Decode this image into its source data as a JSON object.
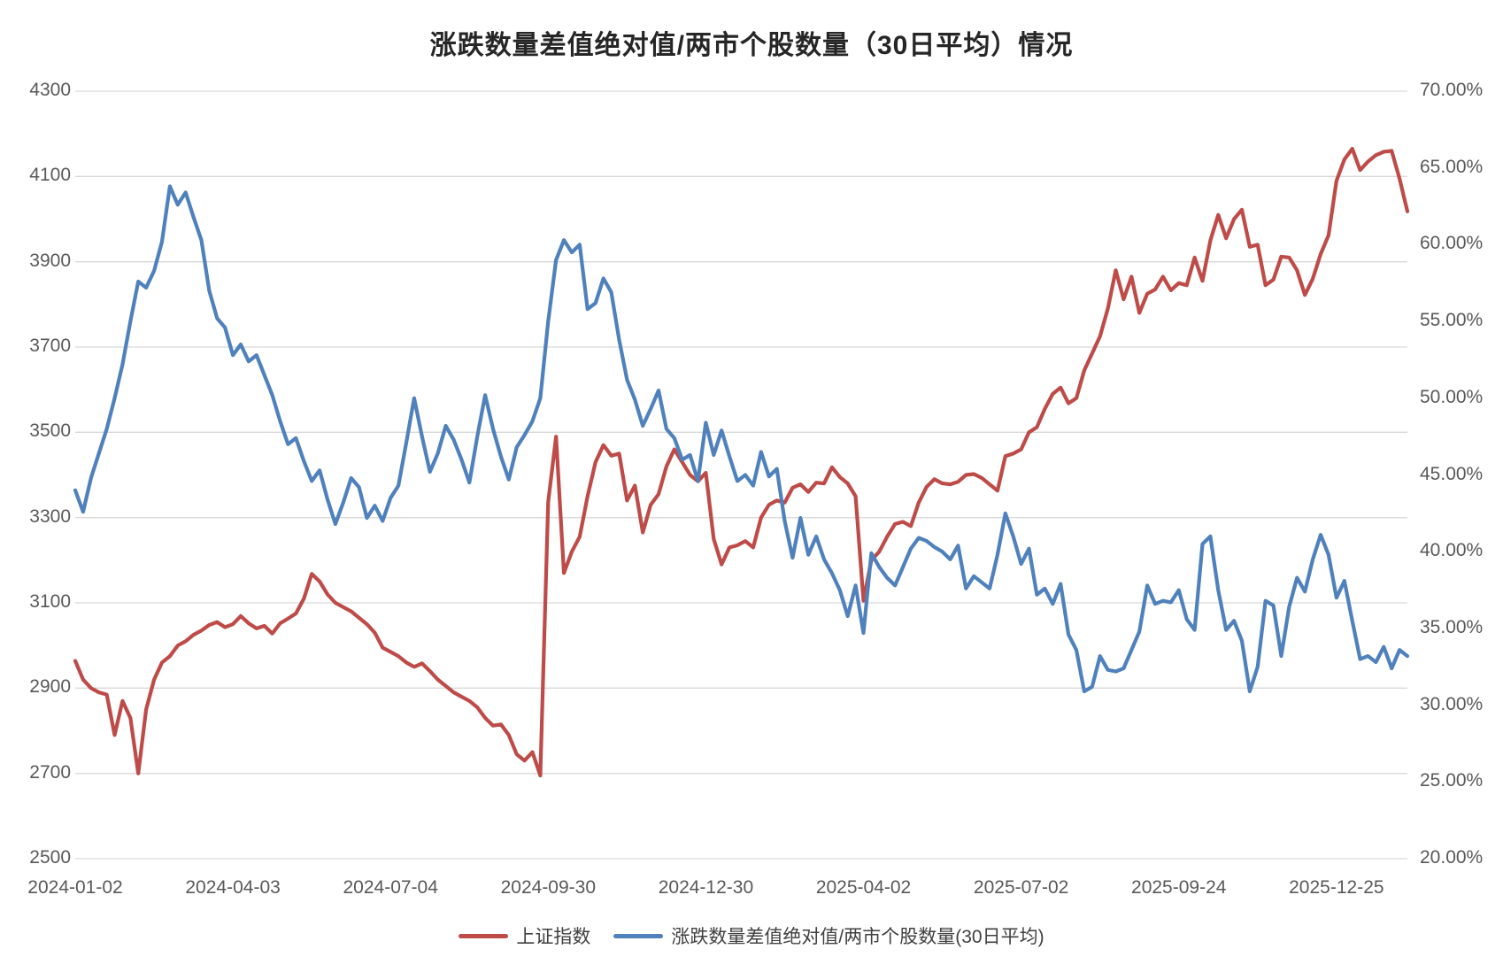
{
  "page": {
    "background": "#FFFFFF"
  },
  "chart_data": {
    "type": "line",
    "title": "涨跌数量差值绝对值/两市个股数量（30日平均）情况",
    "title_color": "#262626",
    "grid_color": "#D9D9D9",
    "axis_text_color": "#595959",
    "legend_position": "bottom",
    "x_tick_labels": [
      "2024-01-02",
      "2024-04-03",
      "2024-07-04",
      "2024-09-30",
      "2024-12-30",
      "2025-04-02",
      "2025-07-02",
      "2025-09-24",
      "2025-12-25"
    ],
    "x_points_per_tick": 20,
    "left_axis": {
      "min": 2500,
      "max": 4300,
      "tick_labels": [
        "4300",
        "4100",
        "3900",
        "3700",
        "3500",
        "3300",
        "3100",
        "2900",
        "2700",
        "2500"
      ]
    },
    "right_axis": {
      "min": 20,
      "max": 70,
      "tick_labels": [
        "70.00%",
        "65.00%",
        "60.00%",
        "55.00%",
        "50.00%",
        "45.00%",
        "40.00%",
        "35.00%",
        "30.00%",
        "25.00%",
        "20.00%"
      ]
    },
    "series": [
      {
        "name": "上证指数",
        "axis": "left",
        "color": "#BE4B48",
        "values": [
          2964,
          2920,
          2900,
          2890,
          2885,
          2790,
          2870,
          2830,
          2700,
          2850,
          2920,
          2960,
          2975,
          3000,
          3010,
          3025,
          3035,
          3048,
          3055,
          3043,
          3050,
          3069,
          3052,
          3040,
          3046,
          3028,
          3052,
          3063,
          3075,
          3110,
          3168,
          3150,
          3120,
          3100,
          3090,
          3080,
          3065,
          3050,
          3030,
          2995,
          2985,
          2975,
          2960,
          2950,
          2958,
          2940,
          2920,
          2905,
          2890,
          2880,
          2870,
          2855,
          2830,
          2812,
          2815,
          2790,
          2745,
          2730,
          2750,
          2695,
          3336,
          3490,
          3170,
          3220,
          3255,
          3350,
          3430,
          3470,
          3445,
          3450,
          3340,
          3375,
          3265,
          3330,
          3355,
          3420,
          3460,
          3430,
          3400,
          3385,
          3405,
          3250,
          3190,
          3230,
          3235,
          3245,
          3230,
          3300,
          3330,
          3340,
          3335,
          3370,
          3378,
          3360,
          3382,
          3380,
          3418,
          3395,
          3380,
          3350,
          3105,
          3200,
          3220,
          3255,
          3285,
          3290,
          3280,
          3335,
          3372,
          3390,
          3380,
          3378,
          3384,
          3400,
          3402,
          3393,
          3378,
          3363,
          3444,
          3450,
          3460,
          3500,
          3512,
          3555,
          3590,
          3605,
          3568,
          3580,
          3645,
          3685,
          3725,
          3790,
          3880,
          3812,
          3865,
          3780,
          3825,
          3835,
          3865,
          3833,
          3850,
          3845,
          3910,
          3855,
          3950,
          4010,
          3955,
          4000,
          4022,
          3935,
          3940,
          3845,
          3858,
          3912,
          3910,
          3880,
          3822,
          3860,
          3918,
          3962,
          4090,
          4140,
          4165,
          4115,
          4135,
          4150,
          4158,
          4160,
          4095,
          4018
        ]
      },
      {
        "name": "涨跌数量差值绝对值/两市个股数量(30日平均)",
        "axis": "right",
        "color": "#4F81BD",
        "values": [
          44.0,
          42.6,
          44.8,
          46.4,
          48.0,
          50.0,
          52.2,
          55.0,
          57.6,
          57.2,
          58.3,
          60.2,
          63.8,
          62.6,
          63.4,
          61.8,
          60.3,
          57.0,
          55.2,
          54.6,
          52.8,
          53.5,
          52.4,
          52.8,
          51.5,
          50.2,
          48.5,
          47.0,
          47.4,
          45.9,
          44.6,
          45.3,
          43.4,
          41.8,
          43.2,
          44.8,
          44.2,
          42.2,
          43.0,
          42.0,
          43.5,
          44.3,
          47.1,
          50.0,
          47.5,
          45.2,
          46.4,
          48.2,
          47.3,
          46.0,
          44.5,
          47.5,
          50.2,
          48.0,
          46.2,
          44.7,
          46.8,
          47.6,
          48.5,
          50.0,
          55.0,
          59.0,
          60.3,
          59.5,
          60.0,
          55.8,
          56.2,
          57.8,
          56.9,
          53.8,
          51.2,
          49.9,
          48.2,
          49.3,
          50.5,
          48.0,
          47.4,
          46.0,
          46.3,
          44.6,
          48.4,
          46.3,
          47.9,
          46.2,
          44.6,
          45.0,
          44.3,
          46.5,
          44.9,
          45.4,
          42.0,
          39.6,
          42.2,
          39.8,
          41.0,
          39.5,
          38.6,
          37.5,
          35.8,
          37.8,
          34.7,
          39.9,
          39.0,
          38.3,
          37.8,
          39.0,
          40.2,
          40.9,
          40.7,
          40.3,
          40.0,
          39.5,
          40.4,
          37.6,
          38.4,
          38.0,
          37.6,
          39.8,
          42.5,
          41.0,
          39.2,
          40.2,
          37.2,
          37.6,
          36.6,
          37.9,
          34.6,
          33.6,
          30.9,
          31.2,
          33.2,
          32.3,
          32.2,
          32.4,
          33.6,
          34.8,
          37.8,
          36.6,
          36.8,
          36.7,
          37.5,
          35.6,
          34.9,
          40.5,
          41.0,
          37.5,
          34.9,
          35.5,
          34.2,
          30.9,
          32.5,
          36.8,
          36.5,
          33.2,
          36.4,
          38.3,
          37.4,
          39.5,
          41.1,
          39.8,
          37.0,
          38.1,
          35.5,
          33.0,
          33.2,
          32.8,
          33.8,
          32.4,
          33.6,
          33.2
        ]
      }
    ]
  }
}
